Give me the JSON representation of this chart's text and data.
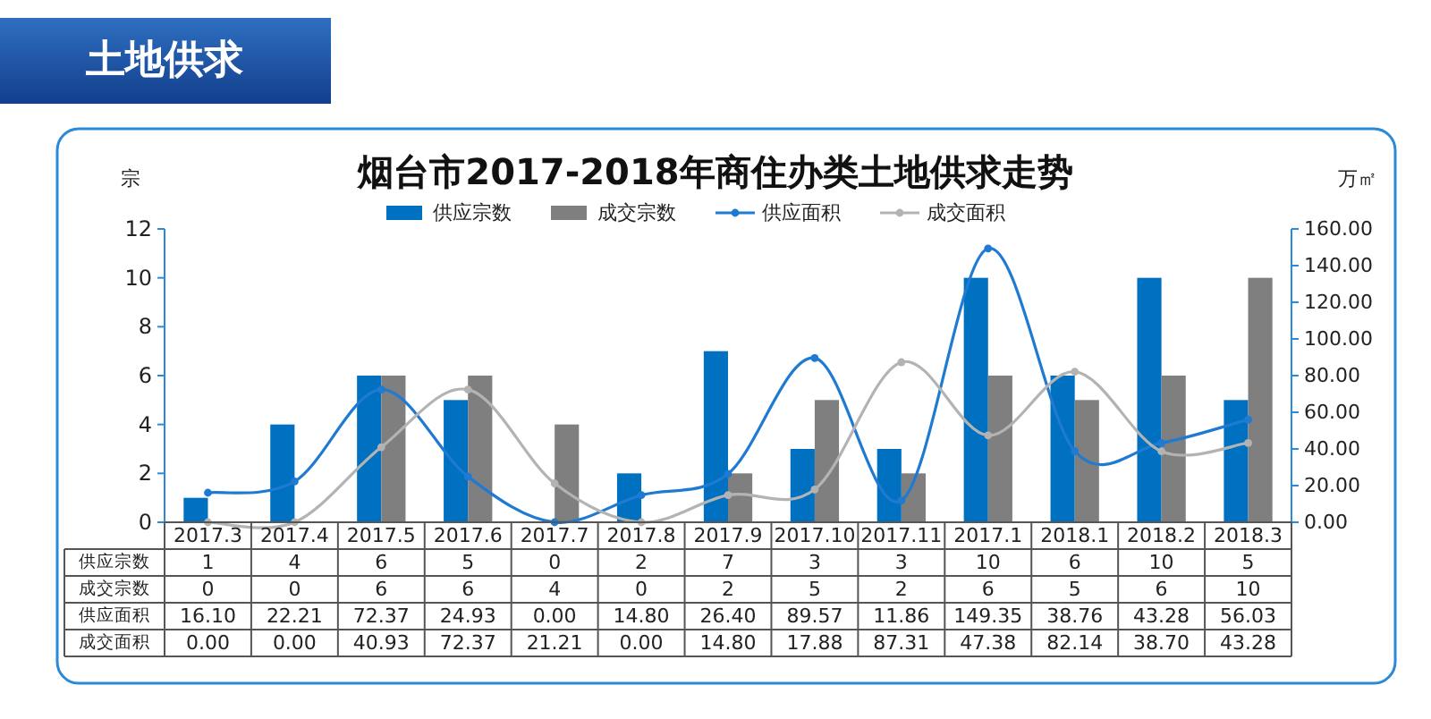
{
  "chart_data": {
    "type": "bar",
    "title": "烟台市2017-2018年商住办类土地供求走势",
    "subtitle": "土地供求",
    "ylabel": "宗",
    "y2label": "万㎡",
    "categories": [
      "2017.3",
      "2017.4",
      "2017.5",
      "2017.6",
      "2017.7",
      "2017.8",
      "2017.9",
      "2017.10",
      "2017.11",
      "2017.1",
      "2018.1",
      "2018.2",
      "2018.3"
    ],
    "series": [
      {
        "name": "供应宗数",
        "type": "bar",
        "color": "#0070c0",
        "values": [
          1,
          4,
          6,
          5,
          0,
          2,
          7,
          3,
          3,
          10,
          6,
          10,
          5
        ],
        "value_labels": [
          "1",
          "4",
          "6",
          "5",
          "0",
          "2",
          "7",
          "3",
          "3",
          "10",
          "6",
          "10",
          "5"
        ]
      },
      {
        "name": "成交宗数",
        "type": "bar",
        "color": "#7f7f7f",
        "values": [
          0,
          0,
          6,
          6,
          4,
          0,
          2,
          5,
          2,
          6,
          5,
          6,
          10
        ],
        "value_labels": [
          "0",
          "0",
          "6",
          "6",
          "4",
          "0",
          "2",
          "5",
          "2",
          "6",
          "5",
          "6",
          "10"
        ]
      },
      {
        "name": "供应面积",
        "type": "line",
        "axis": "y2",
        "marker": "circle",
        "color": "#1f7ad1",
        "values": [
          16.1,
          22.21,
          72.37,
          24.93,
          0.0,
          14.8,
          26.4,
          89.57,
          11.86,
          149.35,
          38.76,
          43.28,
          56.03
        ],
        "value_labels": [
          "16.10",
          "22.21",
          "72.37",
          "24.93",
          "0.00",
          "14.80",
          "26.40",
          "89.57",
          "11.86",
          "149.35",
          "38.76",
          "43.28",
          "56.03"
        ]
      },
      {
        "name": "成交面积",
        "type": "line",
        "axis": "y2",
        "marker": "circle",
        "color": "#b3b3b3",
        "values": [
          0.0,
          0.0,
          40.93,
          72.37,
          21.21,
          0.0,
          14.8,
          17.88,
          87.31,
          47.38,
          82.14,
          38.7,
          43.28
        ],
        "value_labels": [
          "0.00",
          "0.00",
          "40.93",
          "72.37",
          "21.21",
          "0.00",
          "14.80",
          "17.88",
          "87.31",
          "47.38",
          "82.14",
          "38.70",
          "43.28"
        ]
      }
    ],
    "ylim": [
      0,
      12
    ],
    "yticks": [
      0,
      2,
      4,
      6,
      8,
      10,
      12
    ],
    "y2lim": [
      0,
      160
    ],
    "y2ticks": [
      {
        "value": 0,
        "label": "0.00"
      },
      {
        "value": 20,
        "label": "20.00"
      },
      {
        "value": 40,
        "label": "40.00"
      },
      {
        "value": 60,
        "label": "60.00"
      },
      {
        "value": 80,
        "label": "80.00"
      },
      {
        "value": 100,
        "label": "100.00"
      },
      {
        "value": 120,
        "label": "120.00"
      },
      {
        "value": 140,
        "label": "140.00"
      },
      {
        "value": 160,
        "label": "160.00"
      }
    ],
    "legend": "top"
  }
}
